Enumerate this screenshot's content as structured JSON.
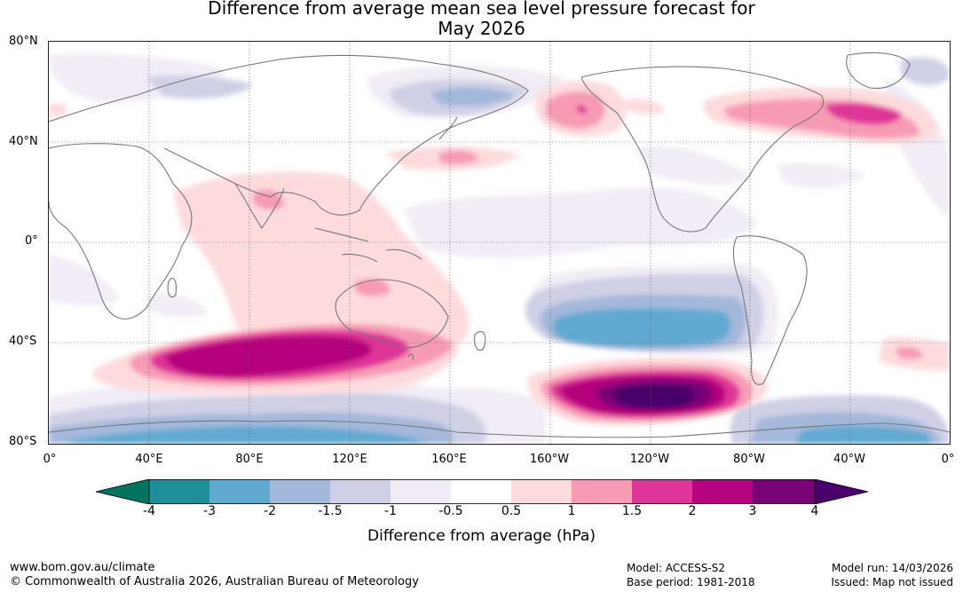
{
  "title": {
    "line1": "Difference from average mean sea level pressure forecast for",
    "line2": "May 2026"
  },
  "axes": {
    "lat_labels": [
      "80°N",
      "40°N",
      "0°",
      "40°S",
      "80°S"
    ],
    "lon_labels": [
      "0°",
      "40°E",
      "80°E",
      "120°E",
      "160°E",
      "160°W",
      "120°W",
      "80°W",
      "40°W",
      "0°"
    ]
  },
  "legend": {
    "ticks": [
      "-4",
      "-3",
      "-2",
      "-1.5",
      "-1",
      "-0.5",
      "0.5",
      "1",
      "1.5",
      "2",
      "3",
      "4"
    ],
    "label": "Difference from average (hPa)",
    "colors": {
      "below_-4": "#03745f",
      "-4_-3": "#1c8f98",
      "-3_-2": "#61a9d1",
      "-2_-1.5": "#a3b8da",
      "-1.5_-1": "#cfd0e6",
      "-1_-0.5": "#f1ecf5",
      "-0.5_0.5": "#ffffff",
      "0.5_1": "#fddbdd",
      "1_1.5": "#f79bb5",
      "1.5_2": "#df3498",
      "2_3": "#b5047d",
      "3_4": "#7a0277",
      "above_4": "#4a006a"
    }
  },
  "footer": {
    "url": "www.bom.gov.au/climate",
    "copyright": "© Commonwealth of Australia 2026, Australian Bureau of Meteorology",
    "model": "Model: ACCESS-S2",
    "base_period": "Base period: 1981-2018",
    "model_run": "Model run: 14/03/2026",
    "issued": "Issued: Map not issued"
  }
}
